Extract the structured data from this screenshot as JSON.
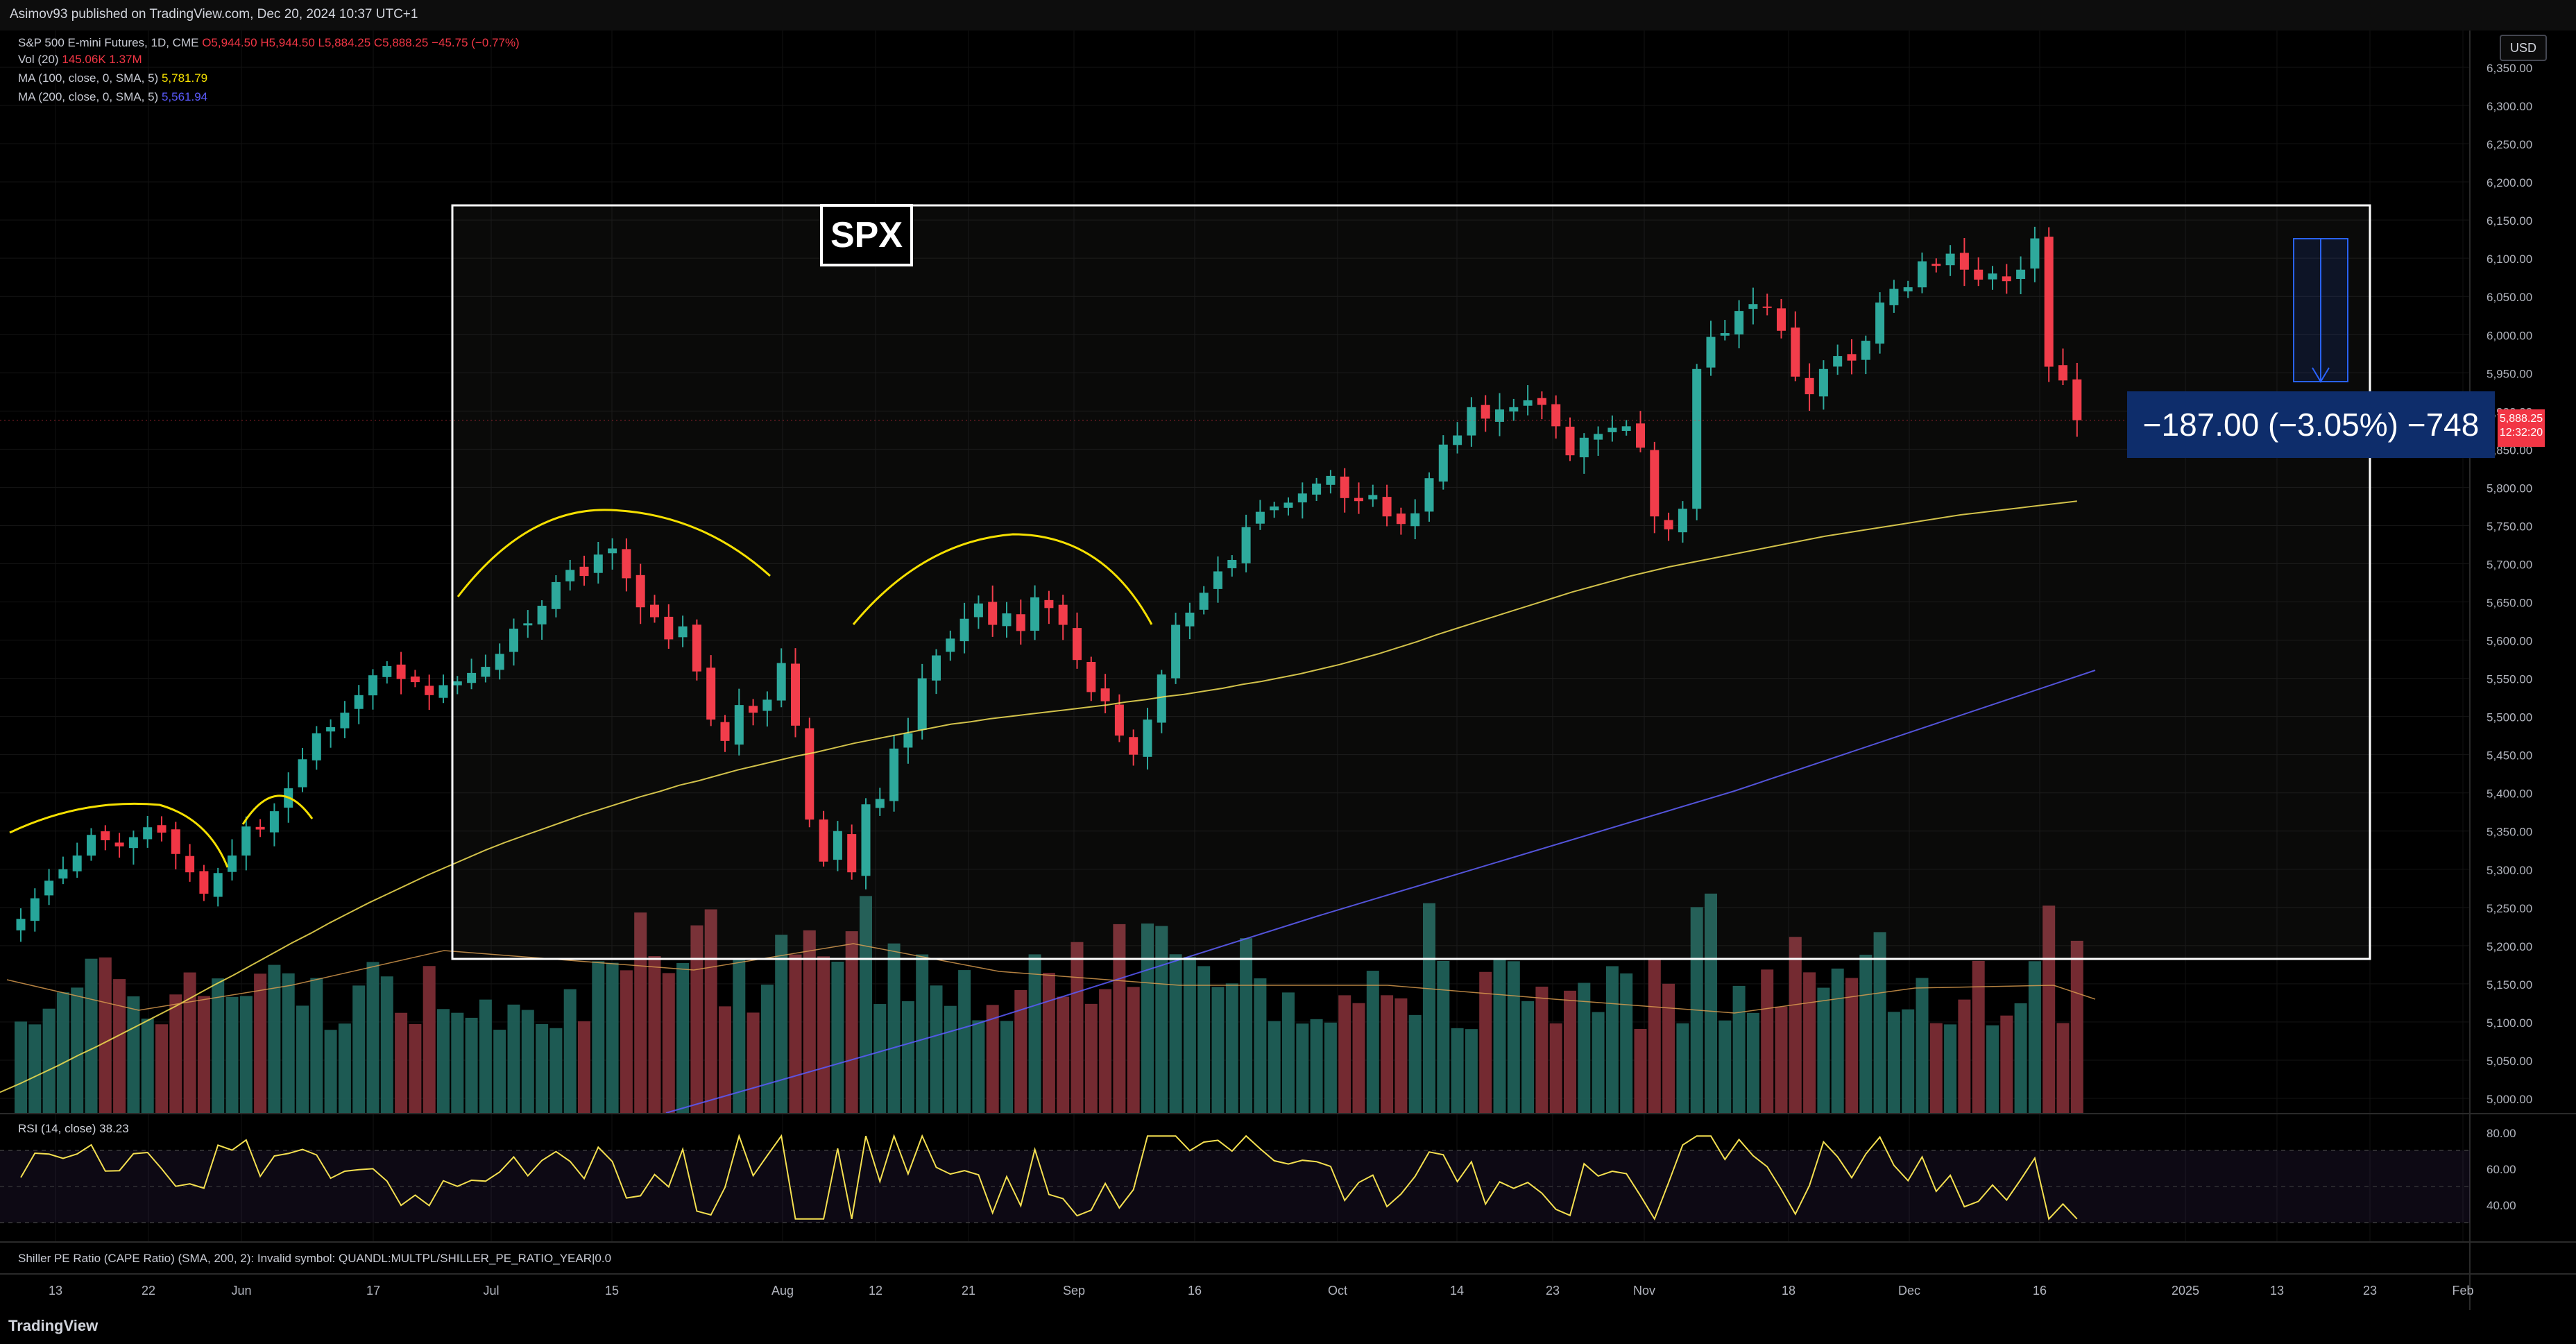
{
  "header": {
    "published": "Asimov93 published on TradingView.com, Dec 20, 2024 10:37 UTC+1"
  },
  "legend": {
    "main": {
      "label": "S&P 500 E-mini Futures, 1D, CME",
      "o": "O5,944.50",
      "h": "H5,944.50",
      "l": "L5,884.25",
      "c": "C5,888.25",
      "chg": "−45.75 (−0.77%)"
    },
    "vol": {
      "label": "Vol (20)",
      "v1": "145.06K",
      "v2": "1.37M"
    },
    "ma100": {
      "label": "MA (100, close, 0, SMA, 5)",
      "value": "5,781.79"
    },
    "ma200": {
      "label": "MA (200, close, 0, SMA, 5)",
      "value": "5,561.94"
    },
    "rsi": {
      "label": "RSI (14, close)",
      "value": "38.23"
    },
    "shiller": "Shiller PE Ratio (CAPE Ratio) (SMA, 200, 2): Invalid symbol: QUANDL:MULTPL/SHILLER_PE_RATIO_YEAR|0.0"
  },
  "currency": "USD",
  "annotation": {
    "box_label": "SPX",
    "measure": "−187.00 (−3.05%) −748"
  },
  "price_label": {
    "value": "5,888.25",
    "time": "12:32:20"
  },
  "colors": {
    "up": "#26a69a",
    "down": "#f23645",
    "ma100": "#f5e050",
    "ma200": "#5b5bff",
    "background": "#000000"
  },
  "branding": "TradingView",
  "chart_data": {
    "type": "candlestick",
    "title": "S&P 500 E-mini Futures, 1D, CME",
    "ylim": [
      4990,
      6360
    ],
    "y_ticks": [
      "5,000.00",
      "5,050.00",
      "5,100.00",
      "5,150.00",
      "5,200.00",
      "5,250.00",
      "5,300.00",
      "5,350.00",
      "5,400.00",
      "5,450.00",
      "5,500.00",
      "5,550.00",
      "5,600.00",
      "5,650.00",
      "5,700.00",
      "5,750.00",
      "5,800.00",
      "5,850.00",
      "5,900.00",
      "5,950.00",
      "6,000.00",
      "6,050.00",
      "6,100.00",
      "6,150.00",
      "6,200.00",
      "6,250.00",
      "6,300.00",
      "6,350.00"
    ],
    "x_ticks": [
      "13",
      "22",
      "Jun",
      "17",
      "Jul",
      "15",
      "Aug",
      "12",
      "21",
      "Sep",
      "16",
      "Oct",
      "14",
      "23",
      "Nov",
      "18",
      "Dec",
      "16",
      "2025",
      "13",
      "23",
      "Feb"
    ],
    "rsi_ticks": [
      "80.00",
      "60.00",
      "40.00"
    ],
    "closes": [
      5235,
      5262,
      5285,
      5300,
      5318,
      5345,
      5338,
      5330,
      5342,
      5355,
      5348,
      5320,
      5296,
      5268,
      5295,
      5318,
      5356,
      5352,
      5376,
      5406,
      5444,
      5478,
      5486,
      5505,
      5528,
      5554,
      5566,
      5549,
      5545,
      5528,
      5541,
      5546,
      5557,
      5565,
      5582,
      5615,
      5622,
      5645,
      5676,
      5692,
      5684,
      5712,
      5720,
      5681,
      5643,
      5630,
      5601,
      5618,
      5559,
      5496,
      5468,
      5515,
      5505,
      5522,
      5570,
      5488,
      5365,
      5310,
      5350,
      5296,
      5385,
      5392,
      5458,
      5478,
      5550,
      5580,
      5602,
      5628,
      5648,
      5620,
      5635,
      5612,
      5656,
      5642,
      5620,
      5574,
      5532,
      5520,
      5475,
      5450,
      5496,
      5555,
      5620,
      5636,
      5662,
      5690,
      5705,
      5748,
      5768,
      5775,
      5780,
      5792,
      5805,
      5815,
      5786,
      5782,
      5790,
      5762,
      5752,
      5766,
      5812,
      5856,
      5868,
      5905,
      5890,
      5902,
      5905,
      5914,
      5908,
      5880,
      5842,
      5865,
      5870,
      5878,
      5880,
      5852,
      5762,
      5745,
      5772,
      5955,
      5997,
      6002,
      6031,
      6040,
      6036,
      6005,
      5945,
      5922,
      5955,
      5972,
      5966,
      5992,
      6042,
      6060,
      6062,
      6096,
      6090,
      6106,
      6085,
      6072,
      6080,
      6070,
      6085,
      6126,
      5958,
      5940,
      5888
    ],
    "ma100": [
      5008,
      5019,
      5031,
      5043,
      5056,
      5068,
      5081,
      5094,
      5107,
      5120,
      5134,
      5148,
      5161,
      5175,
      5189,
      5203,
      5216,
      5230,
      5243,
      5256,
      5268,
      5280,
      5292,
      5303,
      5314,
      5325,
      5335,
      5344,
      5353,
      5362,
      5371,
      5379,
      5387,
      5395,
      5402,
      5410,
      5416,
      5423,
      5430,
      5436,
      5442,
      5448,
      5453,
      5459,
      5465,
      5470,
      5475,
      5480,
      5485,
      5490,
      5493,
      5497,
      5500,
      5503,
      5506,
      5509,
      5512,
      5515,
      5519,
      5522,
      5526,
      5529,
      5533,
      5537,
      5542,
      5546,
      5551,
      5556,
      5562,
      5568,
      5575,
      5582,
      5590,
      5598,
      5607,
      5615,
      5623,
      5631,
      5639,
      5647,
      5655,
      5663,
      5670,
      5677,
      5684,
      5690,
      5696,
      5701,
      5706,
      5711,
      5716,
      5721,
      5726,
      5731,
      5736,
      5740,
      5744,
      5748,
      5752,
      5756,
      5760,
      5764,
      5767,
      5770,
      5773,
      5776,
      5779,
      5782
    ],
    "ma200": [
      5560
    ],
    "measure_text": "−187.00 (−3.05%) −748"
  }
}
